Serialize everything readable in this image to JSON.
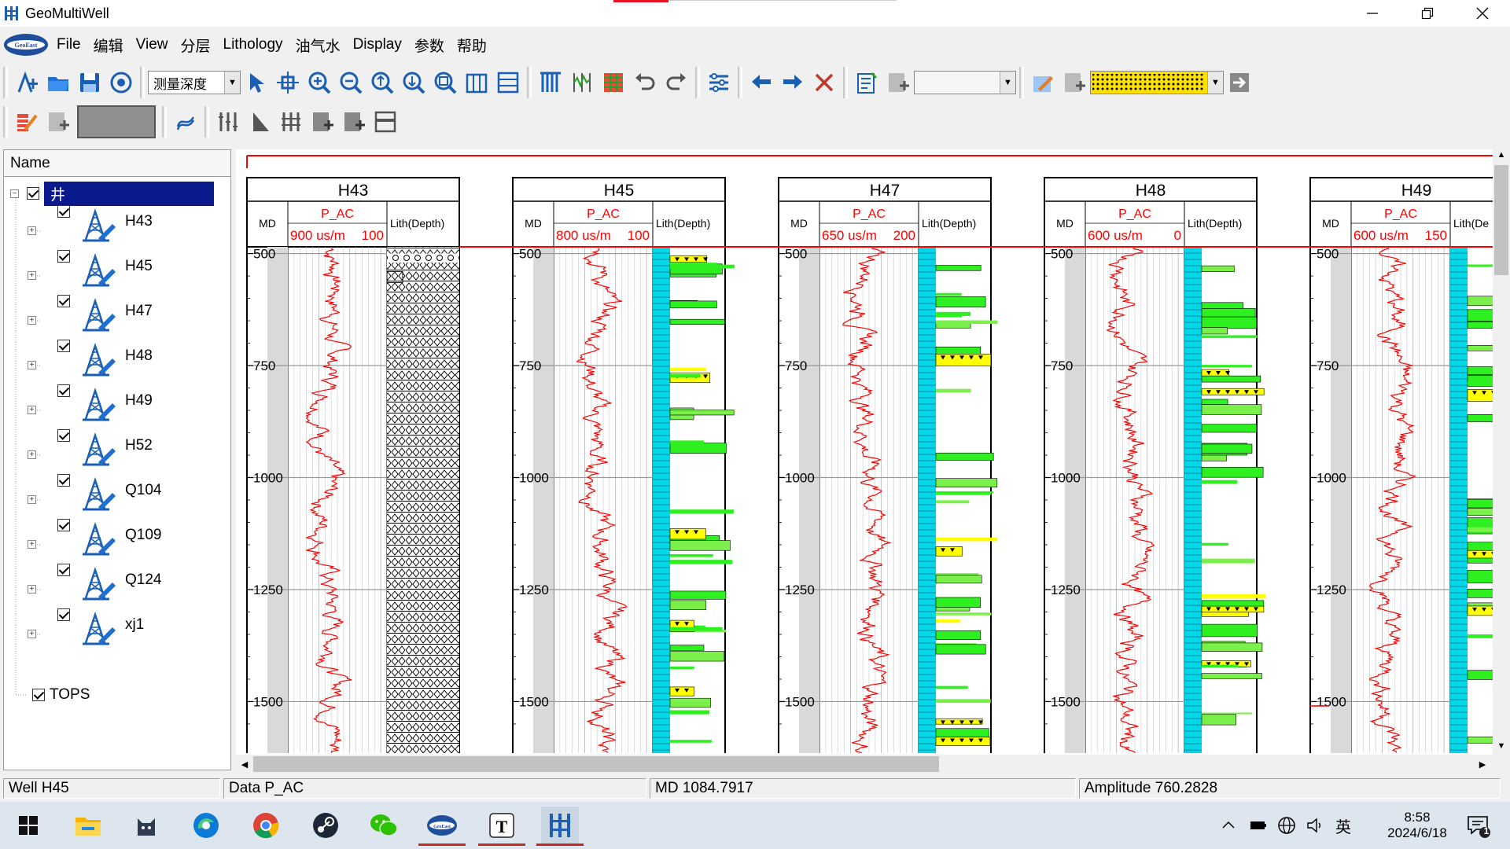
{
  "window": {
    "title": "GeoMultiWell"
  },
  "menu": {
    "items": [
      "File",
      "编辑",
      "View",
      "分层",
      "Lithology",
      "油气水",
      "Display",
      "参数",
      "帮助"
    ]
  },
  "toolbar": {
    "depth_mode": "测量深度"
  },
  "tree": {
    "header": "Name",
    "root_label": "井",
    "wells": [
      "H43",
      "H45",
      "H47",
      "H48",
      "H49",
      "H52",
      "Q104",
      "Q109",
      "Q124",
      "xj1"
    ],
    "tops_label": "TOPS"
  },
  "tracks": {
    "curve_name": "P_AC",
    "md_label": "MD",
    "lith_label": "Lith(Depth)",
    "lith_label_cut": "Lith(De",
    "wells": [
      {
        "name": "H43",
        "scale_left": "900",
        "unit": "us/m",
        "scale_right": "100",
        "lith_style": "pattern"
      },
      {
        "name": "H45",
        "scale_left": "800",
        "unit": "us/m",
        "scale_right": "100",
        "lith_style": "color"
      },
      {
        "name": "H47",
        "scale_left": "650",
        "unit": "us/m",
        "scale_right": "200",
        "lith_style": "color"
      },
      {
        "name": "H48",
        "scale_left": "600",
        "unit": "us/m",
        "scale_right": "0",
        "lith_style": "color"
      },
      {
        "name": "H49",
        "scale_left": "600",
        "unit": "us/m",
        "scale_right": "150",
        "lith_style": "color"
      }
    ],
    "depth_ticks": [
      "500",
      "750",
      "1000",
      "1250",
      "1500"
    ],
    "depth_range": [
      485,
      1615
    ],
    "colors": {
      "curve": "#ff0000",
      "water_lith": "#00d8e8",
      "sand_green": "#2ef020",
      "oil_yellow": "#ffff00",
      "grid": "#c8c8c8"
    }
  },
  "status": {
    "well": "Well H45",
    "data": "Data P_AC",
    "md": "MD  1084.7917",
    "amplitude": "Amplitude 760.2828"
  },
  "taskbar": {
    "time": "8:58",
    "date": "2024/6/18",
    "ime": "英",
    "notif_count": "1"
  }
}
